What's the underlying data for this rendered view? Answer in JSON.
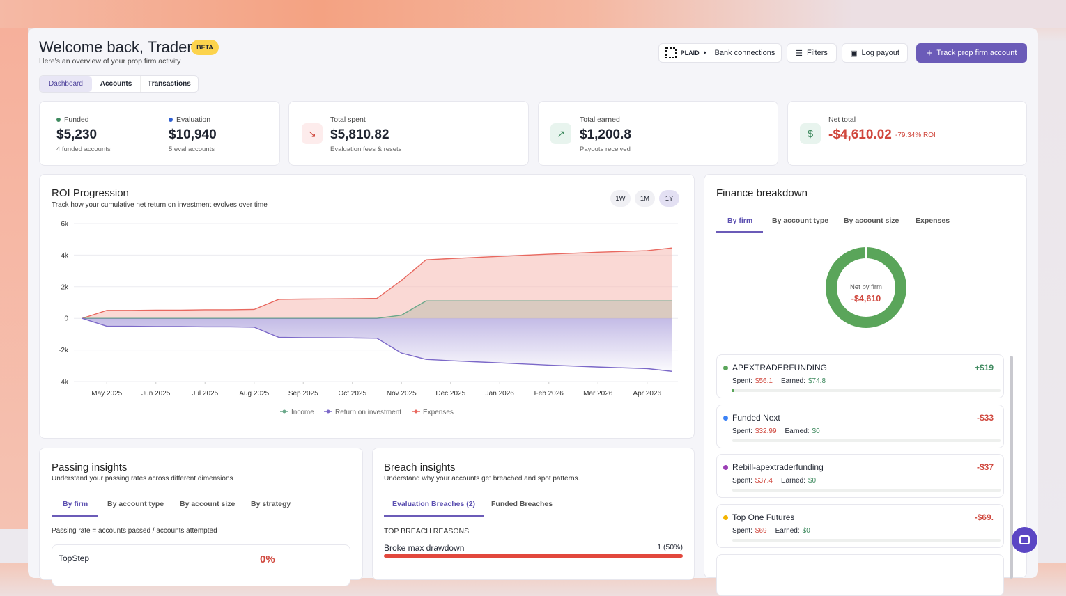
{
  "header": {
    "title": "Welcome back, Trader",
    "badge": "BETA",
    "subtitle": "Here's an overview of your prop firm activity"
  },
  "actions": {
    "plaid": "PLAID",
    "bank": "Bank connections",
    "filters": "Filters",
    "log": "Log payout",
    "track": "Track prop firm account"
  },
  "tabs": [
    "Dashboard",
    "Accounts",
    "Transactions"
  ],
  "stats": {
    "funded": {
      "label": "Funded",
      "value": "$5,230",
      "note": "4 funded accounts"
    },
    "evaluation": {
      "label": "Evaluation",
      "value": "$10,940",
      "note": "5 eval accounts"
    },
    "spent": {
      "label": "Total spent",
      "value": "$5,810.82",
      "note": "Evaluation fees & resets"
    },
    "earned": {
      "label": "Total earned",
      "value": "$1,200.8",
      "note": "Payouts received"
    },
    "net": {
      "label": "Net total",
      "value": "-$4,610.02",
      "roi": "-79.34% ROI"
    }
  },
  "chart_data": {
    "type": "area",
    "title": "ROI Progression",
    "subtitle": "Track how your cumulative net return on investment evolves over time",
    "ranges": [
      "1W",
      "1M",
      "1Y"
    ],
    "categories": [
      null,
      "May 2025",
      null,
      "Jun 2025",
      null,
      "Jul 2025",
      null,
      "Aug 2025",
      null,
      "Sep 2025",
      null,
      "Oct 2025",
      null,
      "Nov 2025",
      null,
      "Dec 2025",
      null,
      "Jan 2026",
      null,
      "Feb 2026",
      null,
      "Mar 2026",
      null,
      "Apr 2026",
      null
    ],
    "ylim": [
      -4000,
      6000
    ],
    "yticks": [
      {
        "value": -4000,
        "label": "-4k"
      },
      {
        "value": -2000,
        "label": "-2k"
      },
      0,
      {
        "value": 2000,
        "label": "2k"
      },
      {
        "value": 4000,
        "label": "4k"
      },
      {
        "value": 6000,
        "label": "6k"
      }
    ],
    "grid": true,
    "series": [
      {
        "name": "Income",
        "color": "#6aa88a",
        "values": [
          0,
          0,
          0,
          0,
          0,
          0,
          0,
          0,
          0,
          0,
          0,
          0,
          0,
          200,
          1100,
          1100,
          1100,
          1100,
          1100,
          1100,
          1100,
          1100,
          1100,
          1100,
          1100
        ]
      },
      {
        "name": "Return on investment",
        "color": "#7b68c8",
        "values": [
          0,
          -500,
          -500,
          -520,
          -520,
          -540,
          -540,
          -560,
          -1200,
          -1220,
          -1230,
          -1240,
          -1260,
          -2200,
          -2600,
          -2680,
          -2750,
          -2820,
          -2890,
          -2960,
          -3020,
          -3080,
          -3130,
          -3180,
          -3350
        ]
      },
      {
        "name": "Expenses",
        "color": "#e8685f",
        "values": [
          0,
          500,
          500,
          520,
          520,
          540,
          540,
          560,
          1200,
          1220,
          1230,
          1240,
          1260,
          2400,
          3700,
          3780,
          3850,
          3920,
          3990,
          4060,
          4120,
          4180,
          4230,
          4280,
          4450
        ]
      }
    ]
  },
  "finance": {
    "title": "Finance breakdown",
    "tabs": [
      "By firm",
      "By account type",
      "By account size",
      "Expenses"
    ],
    "donut": {
      "label": "Net by firm",
      "value": "-$4,610"
    },
    "spent_label": "Spent:",
    "earned_label": "Earned:",
    "firms": [
      {
        "name": "APEXTRADERFUNDING",
        "color": "#5aa55a",
        "net": "+$19",
        "spent": "$56.1",
        "earned": "$74.8"
      },
      {
        "name": "Funded Next",
        "color": "#3b82f6",
        "net": "-$33",
        "spent": "$32.99",
        "earned": "$0"
      },
      {
        "name": "Rebill-apextraderfunding",
        "color": "#9b3fb5",
        "net": "-$37",
        "spent": "$37.4",
        "earned": "$0"
      },
      {
        "name": "Top One Futures",
        "color": "#f4b400",
        "net": "-$69.",
        "spent": "$69",
        "earned": "$0"
      }
    ]
  },
  "passing": {
    "title": "Passing insights",
    "subtitle": "Understand your passing rates across different dimensions",
    "tabs": [
      "By firm",
      "By account type",
      "By account size",
      "By strategy"
    ],
    "note": "Passing rate = accounts passed / accounts attempted",
    "row": {
      "name": "TopStep",
      "rate": "0%"
    }
  },
  "breach": {
    "title": "Breach insights",
    "subtitle": "Understand why your accounts get breached and spot patterns.",
    "tabs": [
      "Evaluation Breaches (2)",
      "Funded Breaches"
    ],
    "section": "TOP BREACH REASONS",
    "row": {
      "name": "Broke max drawdown",
      "count": "1 (50%)"
    }
  }
}
